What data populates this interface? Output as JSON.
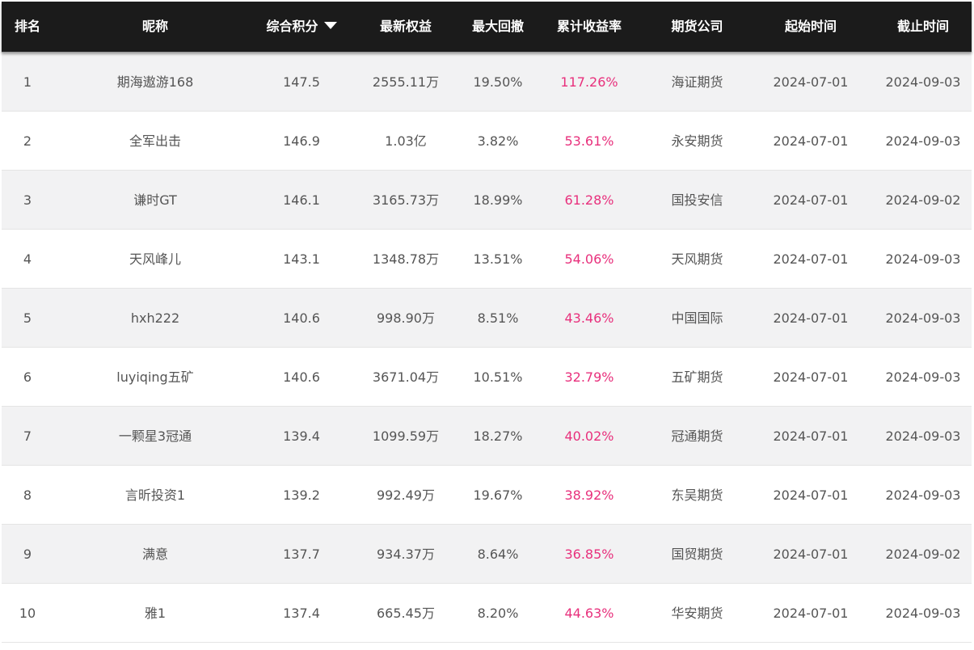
{
  "header": {
    "rank": "排名",
    "nickname": "昵称",
    "score": "综合积分",
    "equity": "最新权益",
    "max_drawdown": "最大回撤",
    "cum_return": "累计收益率",
    "company": "期货公司",
    "start": "起始时间",
    "end": "截止时间"
  },
  "colors": {
    "header_bg": "#1b1b1b",
    "row_alt_bg": "#f2f2f3",
    "return_text": "#e8307c",
    "body_text": "#555555"
  },
  "rows": [
    {
      "rank": "1",
      "nickname": "期海遨游168",
      "score": "147.5",
      "equity": "2555.11万",
      "max_drawdown": "19.50%",
      "cum_return": "117.26%",
      "company": "海证期货",
      "start": "2024-07-01",
      "end": "2024-09-03"
    },
    {
      "rank": "2",
      "nickname": "全军出击",
      "score": "146.9",
      "equity": "1.03亿",
      "max_drawdown": "3.82%",
      "cum_return": "53.61%",
      "company": "永安期货",
      "start": "2024-07-01",
      "end": "2024-09-03"
    },
    {
      "rank": "3",
      "nickname": "谦时GT",
      "score": "146.1",
      "equity": "3165.73万",
      "max_drawdown": "18.99%",
      "cum_return": "61.28%",
      "company": "国投安信",
      "start": "2024-07-01",
      "end": "2024-09-02"
    },
    {
      "rank": "4",
      "nickname": "天风峰儿",
      "score": "143.1",
      "equity": "1348.78万",
      "max_drawdown": "13.51%",
      "cum_return": "54.06%",
      "company": "天风期货",
      "start": "2024-07-01",
      "end": "2024-09-03"
    },
    {
      "rank": "5",
      "nickname": "hxh222",
      "score": "140.6",
      "equity": "998.90万",
      "max_drawdown": "8.51%",
      "cum_return": "43.46%",
      "company": "中国国际",
      "start": "2024-07-01",
      "end": "2024-09-03"
    },
    {
      "rank": "6",
      "nickname": "luyiqing五矿",
      "score": "140.6",
      "equity": "3671.04万",
      "max_drawdown": "10.51%",
      "cum_return": "32.79%",
      "company": "五矿期货",
      "start": "2024-07-01",
      "end": "2024-09-03"
    },
    {
      "rank": "7",
      "nickname": "一颗星3冠通",
      "score": "139.4",
      "equity": "1099.59万",
      "max_drawdown": "18.27%",
      "cum_return": "40.02%",
      "company": "冠通期货",
      "start": "2024-07-01",
      "end": "2024-09-03"
    },
    {
      "rank": "8",
      "nickname": "言昕投资1",
      "score": "139.2",
      "equity": "992.49万",
      "max_drawdown": "19.67%",
      "cum_return": "38.92%",
      "company": "东吴期货",
      "start": "2024-07-01",
      "end": "2024-09-03"
    },
    {
      "rank": "9",
      "nickname": "满意",
      "score": "137.7",
      "equity": "934.37万",
      "max_drawdown": "8.64%",
      "cum_return": "36.85%",
      "company": "国贸期货",
      "start": "2024-07-01",
      "end": "2024-09-02"
    },
    {
      "rank": "10",
      "nickname": "雅1",
      "score": "137.4",
      "equity": "665.45万",
      "max_drawdown": "8.20%",
      "cum_return": "44.63%",
      "company": "华安期货",
      "start": "2024-07-01",
      "end": "2024-09-03"
    }
  ]
}
